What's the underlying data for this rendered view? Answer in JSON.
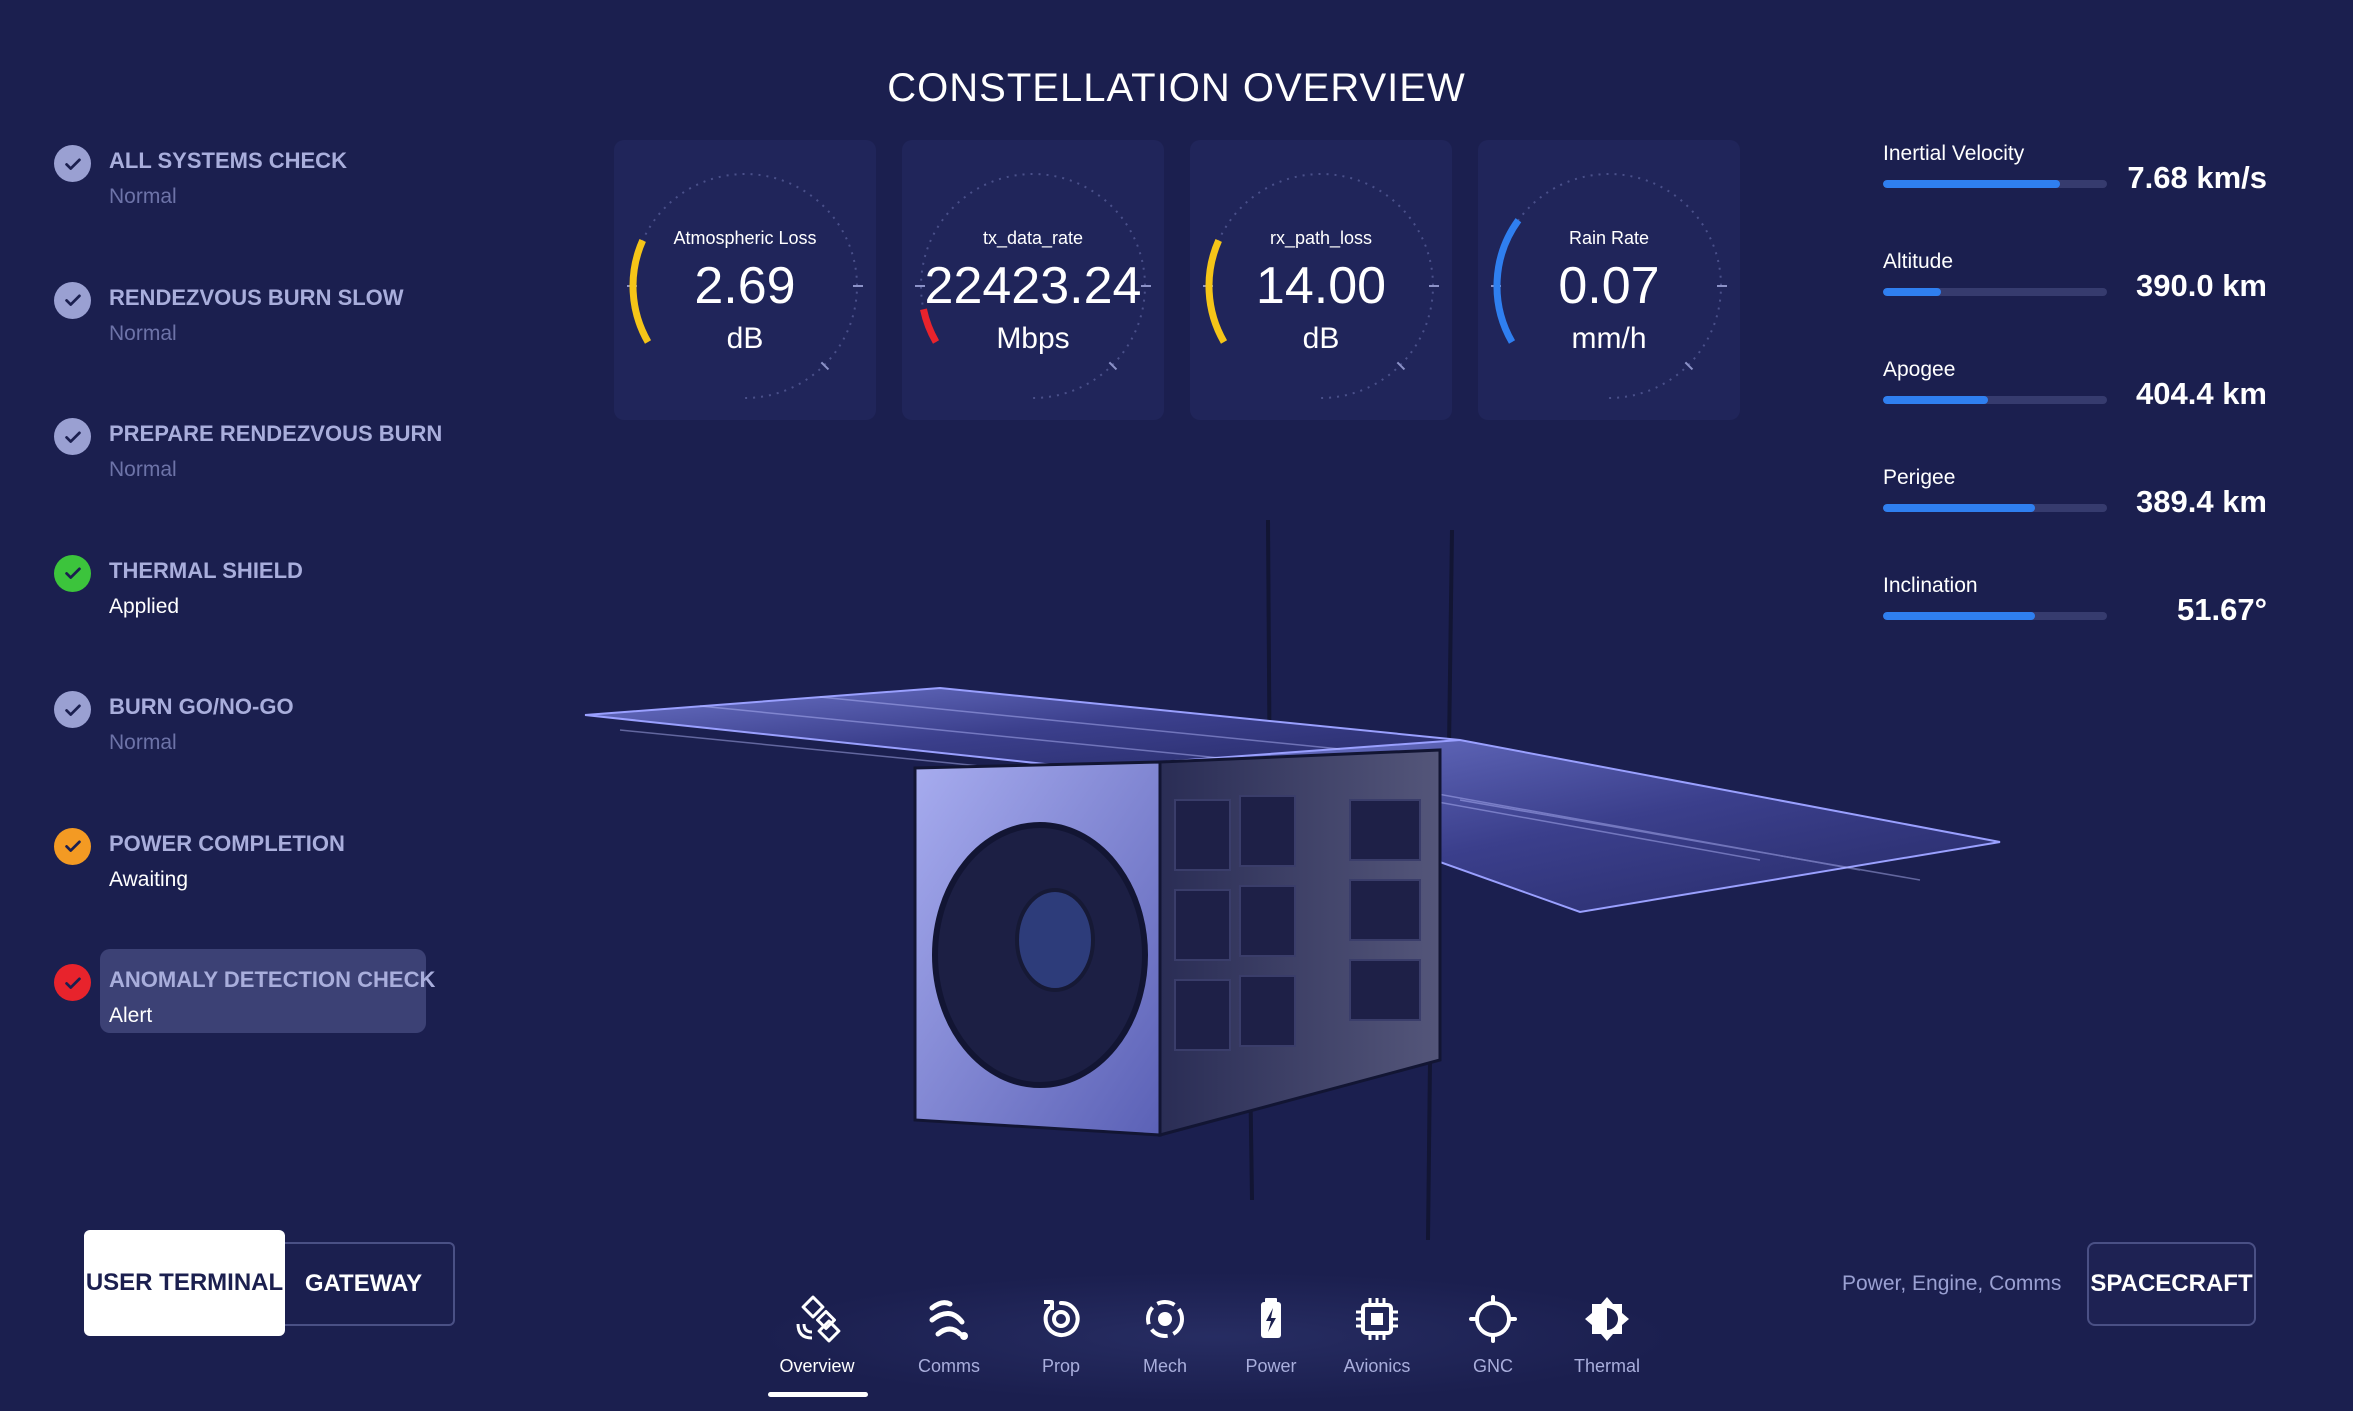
{
  "title": "CONSTELLATION OVERVIEW",
  "checklist": [
    {
      "label": "ALL SYSTEMS CHECK",
      "status": "Normal",
      "state": "normal"
    },
    {
      "label": "RENDEZVOUS BURN SLOW",
      "status": "Normal",
      "state": "normal"
    },
    {
      "label": "PREPARE RENDEZVOUS BURN",
      "status": "Normal",
      "state": "normal"
    },
    {
      "label": "THERMAL SHIELD",
      "status": "Applied",
      "state": "ok"
    },
    {
      "label": "BURN GO/NO-GO",
      "status": "Normal",
      "state": "normal"
    },
    {
      "label": "POWER COMPLETION",
      "status": "Awaiting",
      "state": "warning"
    },
    {
      "label": "ANOMALY DETECTION CHECK",
      "status": "Alert",
      "state": "alert"
    }
  ],
  "gauges": [
    {
      "label": "Atmospheric Loss",
      "value": "2.69",
      "unit": "dB",
      "level": 0.18,
      "color": "#f5c518"
    },
    {
      "label": "tx_data_rate",
      "value": "22423.24",
      "unit": "Mbps",
      "level": 0.06,
      "color": "#e8232c"
    },
    {
      "label": "rx_path_loss",
      "value": "14.00",
      "unit": "dB",
      "level": 0.18,
      "color": "#f5c518"
    },
    {
      "label": "Rain Rate",
      "value": "0.07",
      "unit": "mm/h",
      "level": 0.22,
      "color": "#2f7ff0"
    }
  ],
  "metrics": [
    {
      "label": "Inertial Velocity",
      "value": "7.68 km/s",
      "fill": 0.79
    },
    {
      "label": "Altitude",
      "value": "390.0 km",
      "fill": 0.26
    },
    {
      "label": "Apogee",
      "value": "404.4 km",
      "fill": 0.47
    },
    {
      "label": "Perigee",
      "value": "389.4 km",
      "fill": 0.68
    },
    {
      "label": "Inclination",
      "value": "51.67°",
      "fill": 0.68
    }
  ],
  "toggle": {
    "user_terminal": "USER TERMINAL",
    "gateway": "GATEWAY"
  },
  "nav": [
    {
      "label": "Overview",
      "icon": "satellite-icon"
    },
    {
      "label": "Comms",
      "icon": "signal-icon"
    },
    {
      "label": "Prop",
      "icon": "propulsion-icon"
    },
    {
      "label": "Mech",
      "icon": "mechanism-icon"
    },
    {
      "label": "Power",
      "icon": "battery-icon"
    },
    {
      "label": "Avionics",
      "icon": "chip-icon"
    },
    {
      "label": "GNC",
      "icon": "crosshair-icon"
    },
    {
      "label": "Thermal",
      "icon": "thermal-icon"
    }
  ],
  "subsystems": "Power, Engine, Comms",
  "spacecraft_button": "SPACECRAFT"
}
